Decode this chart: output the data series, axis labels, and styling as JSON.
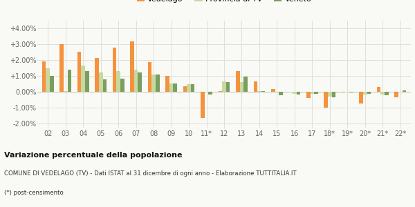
{
  "categories": [
    "02",
    "03",
    "04",
    "05",
    "06",
    "07",
    "08",
    "09",
    "10",
    "11*",
    "12",
    "13",
    "14",
    "15",
    "16",
    "17",
    "18*",
    "19*",
    "20*",
    "21*",
    "22*"
  ],
  "vedelago": [
    1.95,
    3.0,
    2.55,
    2.15,
    2.8,
    3.2,
    1.9,
    1.0,
    0.35,
    -1.65,
    0.05,
    1.3,
    0.65,
    0.2,
    0.0,
    -0.4,
    -1.0,
    -0.05,
    -0.75,
    0.3,
    -0.35
  ],
  "provincia_tv": [
    1.5,
    0.05,
    1.65,
    1.25,
    1.3,
    1.4,
    1.1,
    0.55,
    0.5,
    -0.05,
    0.65,
    0.6,
    0.05,
    0.0,
    -0.1,
    -0.1,
    -0.3,
    -0.05,
    -0.15,
    -0.15,
    -0.05
  ],
  "veneto": [
    1.0,
    1.4,
    1.3,
    0.8,
    0.85,
    1.25,
    1.1,
    0.55,
    0.5,
    -0.15,
    0.6,
    0.95,
    0.05,
    -0.2,
    -0.15,
    -0.1,
    -0.35,
    -0.05,
    -0.1,
    -0.2,
    0.1
  ],
  "color_vedelago": "#f5923e",
  "color_provincia": "#c8d9a0",
  "color_veneto": "#7a9e5f",
  "subtitle": "COMUNE DI VEDELAGO (TV) - Dati ISTAT al 31 dicembre di ogni anno - Elaborazione TUTTITALIA.IT",
  "footnote": "(*) post-censimento",
  "title1": "Variazione percentuale della popolazione",
  "ylim": [
    -2.3,
    4.5
  ],
  "yticks": [
    -2.0,
    -1.0,
    0.0,
    1.0,
    2.0,
    3.0,
    4.0
  ],
  "bg_color": "#f9f9f6",
  "grid_color": "#e0e0d8"
}
